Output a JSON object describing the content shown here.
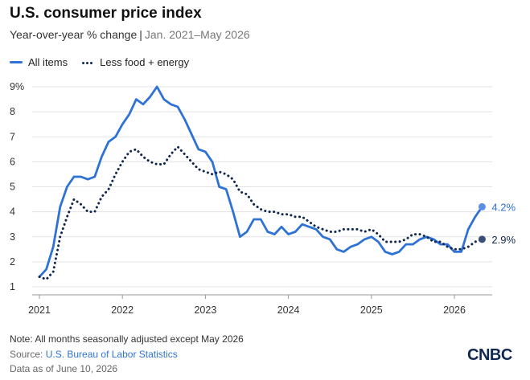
{
  "header": {
    "title": "U.S. consumer price index",
    "subtitle_main": "Year-over-year % change",
    "subtitle_separator": "|",
    "subtitle_range": "Jan. 2021–May 2026"
  },
  "legend": {
    "all_items": "All items",
    "core": "Less food + energy"
  },
  "footer": {
    "note": "Note: All months seasonally adjusted except May 2026",
    "source_prefix": "Source: ",
    "source_link": "U.S. Bureau of Labor Statistics",
    "as_of": "Data as of June 10, 2026"
  },
  "logo": "CNBC",
  "colors": {
    "all_items": "#2f72d6",
    "core": "#10284f",
    "all_items_end": "#5b8fe6",
    "core_end": "#3a4f78",
    "grid": "#e3e3e3"
  },
  "chart_data": {
    "type": "line",
    "title": "U.S. consumer price index",
    "subtitle": "Year-over-year % change | Jan. 2021–May 2026",
    "ylim": [
      1,
      9
    ],
    "y_ticks": [
      "1",
      "2",
      "3",
      "4",
      "5",
      "6",
      "7",
      "8",
      "9%"
    ],
    "x_ticks": [
      "2021",
      "2022",
      "2023",
      "2024",
      "2025",
      "2026"
    ],
    "grid": true,
    "legend_position": "top-left",
    "x_start": "2021-01",
    "series": [
      {
        "name": "All items",
        "style": "solid",
        "values": [
          1.4,
          1.7,
          2.6,
          4.2,
          5.0,
          5.4,
          5.4,
          5.3,
          5.4,
          6.2,
          6.8,
          7.0,
          7.5,
          7.9,
          8.5,
          8.3,
          8.6,
          9.0,
          8.5,
          8.3,
          8.2,
          7.7,
          7.1,
          6.5,
          6.4,
          6.0,
          5.0,
          4.9,
          4.0,
          3.0,
          3.2,
          3.7,
          3.7,
          3.2,
          3.1,
          3.4,
          3.1,
          3.2,
          3.5,
          3.4,
          3.3,
          3.0,
          2.9,
          2.5,
          2.4,
          2.6,
          2.7,
          2.9,
          3.0,
          2.8,
          2.4,
          2.3,
          2.4,
          2.7,
          2.7,
          2.9,
          3.0,
          2.9,
          2.7,
          2.7,
          2.4,
          2.4,
          3.3,
          3.8,
          4.2
        ],
        "end_label": "4.2%"
      },
      {
        "name": "Less food + energy",
        "style": "dotted",
        "values": [
          1.4,
          1.3,
          1.6,
          3.0,
          3.8,
          4.5,
          4.3,
          4.0,
          4.0,
          4.6,
          4.9,
          5.5,
          6.0,
          6.4,
          6.5,
          6.2,
          6.0,
          5.9,
          5.9,
          6.3,
          6.6,
          6.3,
          6.0,
          5.7,
          5.6,
          5.5,
          5.6,
          5.5,
          5.3,
          4.8,
          4.7,
          4.3,
          4.1,
          4.0,
          4.0,
          3.9,
          3.9,
          3.8,
          3.8,
          3.6,
          3.4,
          3.3,
          3.2,
          3.2,
          3.3,
          3.3,
          3.3,
          3.2,
          3.3,
          3.1,
          2.8,
          2.8,
          2.8,
          2.9,
          3.1,
          3.1,
          3.0,
          2.8,
          2.8,
          2.6,
          2.5,
          2.5,
          2.6,
          2.8,
          2.9
        ],
        "end_label": "2.9%"
      }
    ]
  }
}
